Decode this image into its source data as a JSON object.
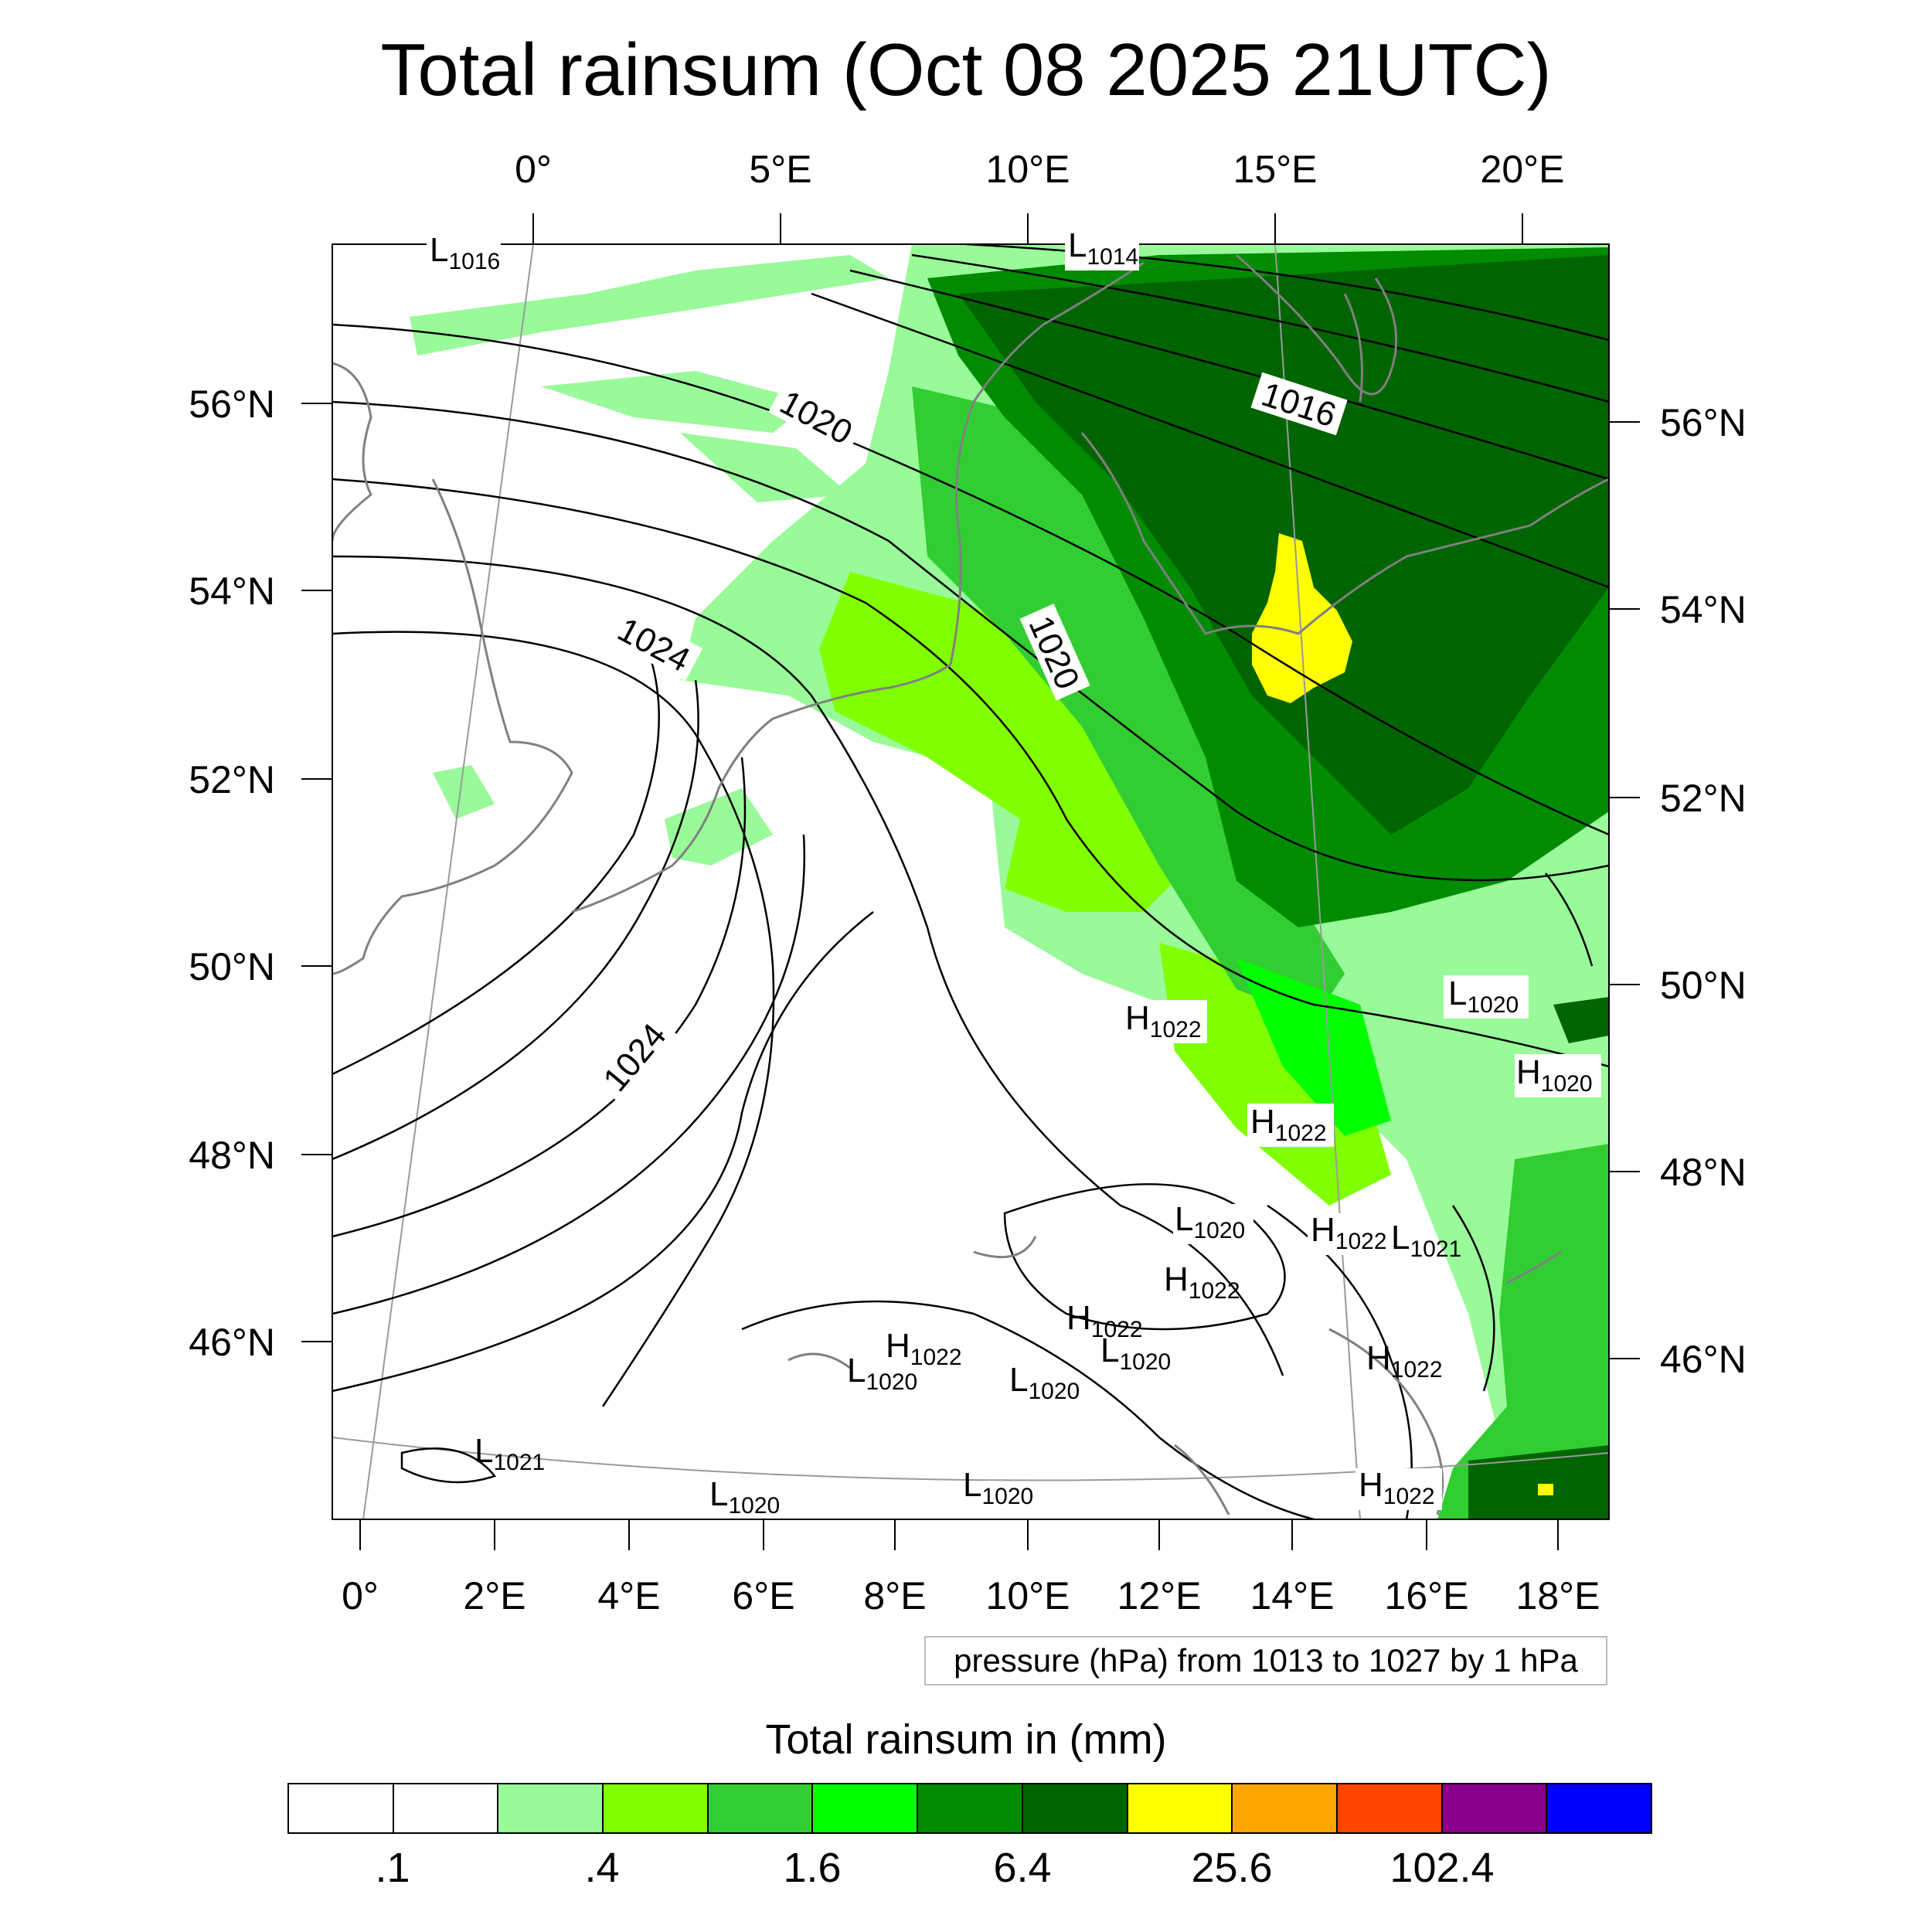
{
  "title": "Total rainsum (Oct 08 2025 21UTC)",
  "top_lon_labels": [
    "0°",
    "5°E",
    "10°E",
    "15°E",
    "20°E"
  ],
  "bottom_lon_labels": [
    "0°",
    "2°E",
    "4°E",
    "6°E",
    "8°E",
    "10°E",
    "12°E",
    "14°E",
    "16°E",
    "18°E"
  ],
  "left_lat_labels": [
    "56°N",
    "54°N",
    "52°N",
    "50°N",
    "48°N",
    "46°N"
  ],
  "right_lat_labels": [
    "56°N",
    "54°N",
    "52°N",
    "50°N",
    "48°N",
    "46°N"
  ],
  "contour_labels": [
    "1016",
    "1020",
    "1020",
    "1024",
    "1024"
  ],
  "pressure_centers": [
    {
      "type": "L",
      "value": "1016"
    },
    {
      "type": "L",
      "value": "1014"
    },
    {
      "type": "L",
      "value": "1020"
    },
    {
      "type": "H",
      "value": "1022"
    },
    {
      "type": "H",
      "value": "1020"
    },
    {
      "type": "H",
      "value": "1022"
    },
    {
      "type": "L",
      "value": "1020"
    },
    {
      "type": "H",
      "value": "1022"
    },
    {
      "type": "L",
      "value": "1021"
    },
    {
      "type": "H",
      "value": "1022"
    },
    {
      "type": "H",
      "value": "1022"
    },
    {
      "type": "L",
      "value": "1020"
    },
    {
      "type": "H",
      "value": "1022"
    },
    {
      "type": "L",
      "value": "1020"
    },
    {
      "type": "L",
      "value": "1020"
    },
    {
      "type": "H",
      "value": "1022"
    },
    {
      "type": "L",
      "value": "1021"
    },
    {
      "type": "L",
      "value": "1020"
    },
    {
      "type": "L",
      "value": "1020"
    },
    {
      "type": "H",
      "value": "1022"
    }
  ],
  "info_text": "pressure (hPa) from 1013 to 1027 by 1 hPa",
  "legend": {
    "title": "Total rainsum in (mm)",
    "colors": [
      "#ffffff",
      "#ffffff",
      "#98fa98",
      "#80ff00",
      "#32cd32",
      "#00ff00",
      "#008b00",
      "#006400",
      "#ffff00",
      "#ffa500",
      "#ff4500",
      "#8b008b",
      "#0000ff"
    ],
    "labels": [
      ".1",
      ".4",
      "1.6",
      "6.4",
      "25.6",
      "102.4"
    ]
  },
  "colors": {
    "light_green": "#98fa98",
    "lime": "#80ff00",
    "mid_green": "#32cd32",
    "bright_green": "#00ff00",
    "green": "#008b00",
    "dark_green": "#006400",
    "yellow": "#ffff00",
    "coast": "#808080",
    "isobar": "#000000"
  }
}
